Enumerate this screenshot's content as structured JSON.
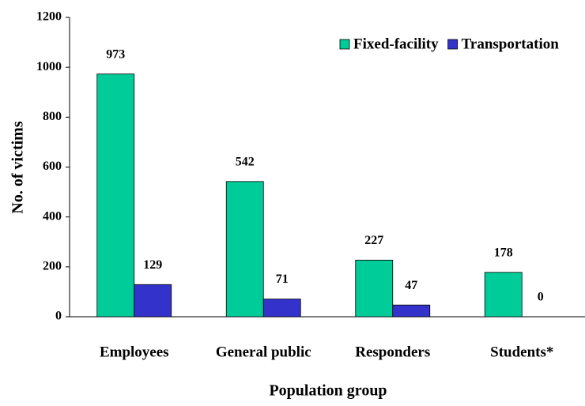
{
  "chart_data": {
    "type": "bar",
    "x_label": "Population group",
    "y_label": "No. of victims",
    "categories": [
      "Employees",
      "General public",
      "Responders",
      "Students*"
    ],
    "series": [
      {
        "name": "Fixed-facility",
        "color": "#00cc99",
        "values": [
          973,
          542,
          227,
          178
        ]
      },
      {
        "name": "Transportation",
        "color": "#3333cc",
        "values": [
          129,
          71,
          47,
          0
        ]
      }
    ],
    "ylim": [
      0,
      1200
    ],
    "yticks": [
      0,
      200,
      400,
      600,
      800,
      1000,
      1200
    ],
    "legend": "top-right"
  }
}
